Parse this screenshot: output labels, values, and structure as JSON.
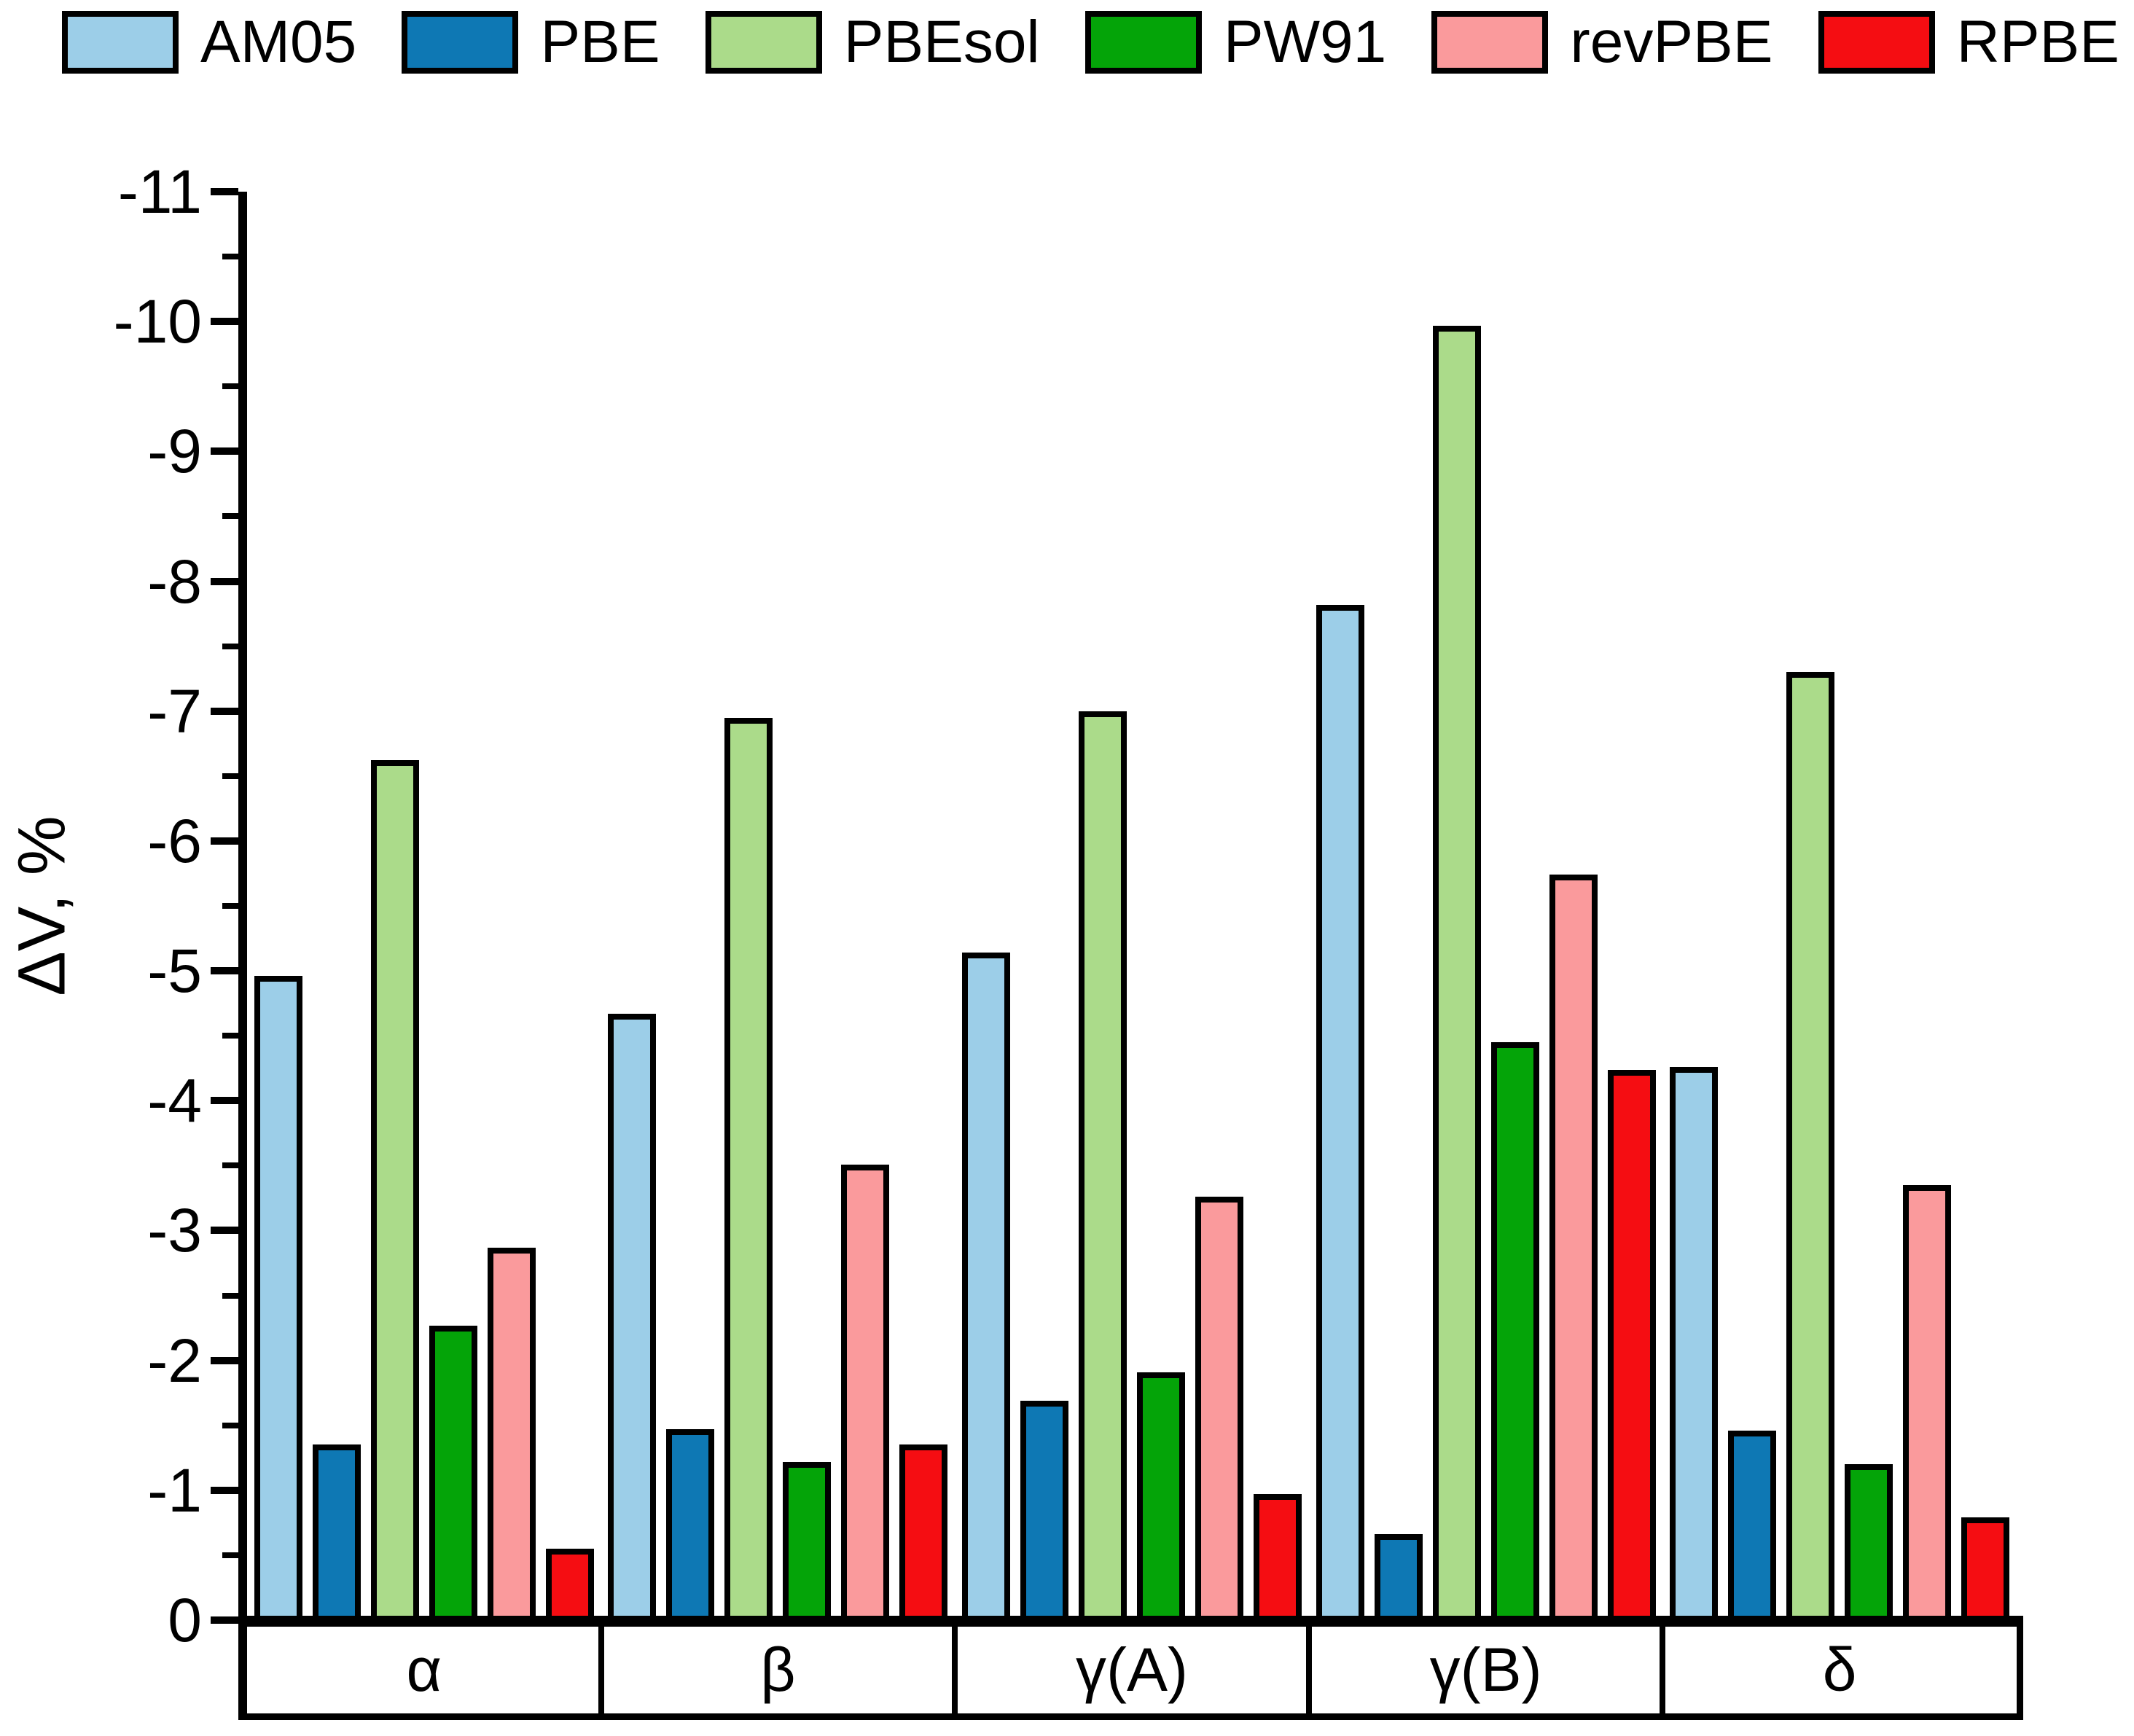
{
  "chart_data": {
    "type": "bar",
    "title": "",
    "xlabel": "",
    "ylabel": "ΔV, %",
    "ylim": [
      0,
      -11
    ],
    "yticks": [
      0,
      -1,
      -2,
      -3,
      -4,
      -5,
      -6,
      -7,
      -8,
      -9,
      -10,
      -11
    ],
    "minor_tick_interval": 0.5,
    "grid": false,
    "legend_position": "top",
    "categories": [
      "α",
      "β",
      "γ(A)",
      "γ(B)",
      "δ"
    ],
    "series": [
      {
        "name": "AM05",
        "color": "#9CCEE8",
        "values": [
          -4.96,
          -4.67,
          -5.14,
          -7.82,
          -4.26
        ]
      },
      {
        "name": "PBE",
        "color": "#0E78B4",
        "values": [
          -1.35,
          -1.47,
          -1.69,
          -0.66,
          -1.46
        ]
      },
      {
        "name": "PBEsol",
        "color": "#ABDB8A",
        "values": [
          -6.62,
          -6.95,
          -7.0,
          -9.97,
          -7.3
        ]
      },
      {
        "name": "PW91",
        "color": "#04A408",
        "values": [
          -2.27,
          -1.22,
          -1.91,
          -4.45,
          -1.2
        ]
      },
      {
        "name": "revPBE",
        "color": "#FA9A9C",
        "values": [
          -2.87,
          -3.51,
          -3.26,
          -5.74,
          -3.35
        ]
      },
      {
        "name": "RPBE",
        "color": "#F50D12",
        "values": [
          -0.55,
          -1.35,
          -0.97,
          -4.24,
          -0.79
        ]
      }
    ]
  }
}
